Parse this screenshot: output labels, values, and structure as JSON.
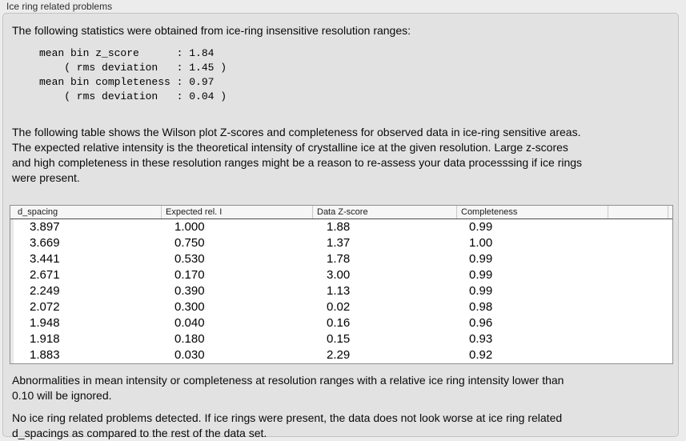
{
  "panel": {
    "title": "Ice ring related problems"
  },
  "intro": {
    "text": "The following statistics were obtained from ice-ring insensitive resolution ranges:"
  },
  "stats": {
    "text": "mean bin z_score      : 1.84\n    ( rms deviation   : 1.45 )\nmean bin completeness : 0.97\n    ( rms deviation   : 0.04 )",
    "mean_bin_z_score": "1.84",
    "z_score_rms_deviation": "1.45",
    "mean_bin_completeness": "0.97",
    "completeness_rms_deviation": "0.04"
  },
  "description": {
    "text": "The following table shows the Wilson plot Z-scores and completeness for observed data in ice-ring sensitive areas.\nThe expected relative intensity is the theoretical intensity of crystalline ice at the given resolution. Large z-scores\nand high completeness in these resolution ranges might be a reason to re-assess your data processsing if ice rings\nwere present."
  },
  "table": {
    "columns": [
      "d_spacing",
      "Expected rel. I",
      "Data Z-score",
      "Completeness"
    ],
    "rows": [
      [
        "3.897",
        "1.000",
        "1.88",
        "0.99"
      ],
      [
        "3.669",
        "0.750",
        "1.37",
        "1.00"
      ],
      [
        "3.441",
        "0.530",
        "1.78",
        "0.99"
      ],
      [
        "2.671",
        "0.170",
        "3.00",
        "0.99"
      ],
      [
        "2.249",
        "0.390",
        "1.13",
        "0.99"
      ],
      [
        "2.072",
        "0.300",
        "0.02",
        "0.98"
      ],
      [
        "1.948",
        "0.040",
        "0.16",
        "0.96"
      ],
      [
        "1.918",
        "0.180",
        "0.15",
        "0.93"
      ],
      [
        "1.883",
        "0.030",
        "2.29",
        "0.92"
      ]
    ]
  },
  "notes": [
    "Abnormalities in mean intensity or completeness at resolution ranges with a relative ice ring intensity lower than\n0.10 will be ignored.",
    "No ice ring related problems detected. If ice rings were present, the data does not look worse at ice ring related\nd_spacings as compared to the rest of the data set."
  ],
  "colors": {
    "page_background": "#ececec",
    "panel_background": "#e2e2e2",
    "panel_border": "#c3c3c3",
    "table_background": "#ffffff",
    "table_border": "#8f8f8f",
    "header_background": "#f6f6f6",
    "header_separator": "#c9c9c9",
    "text": "#0a0a0a"
  }
}
